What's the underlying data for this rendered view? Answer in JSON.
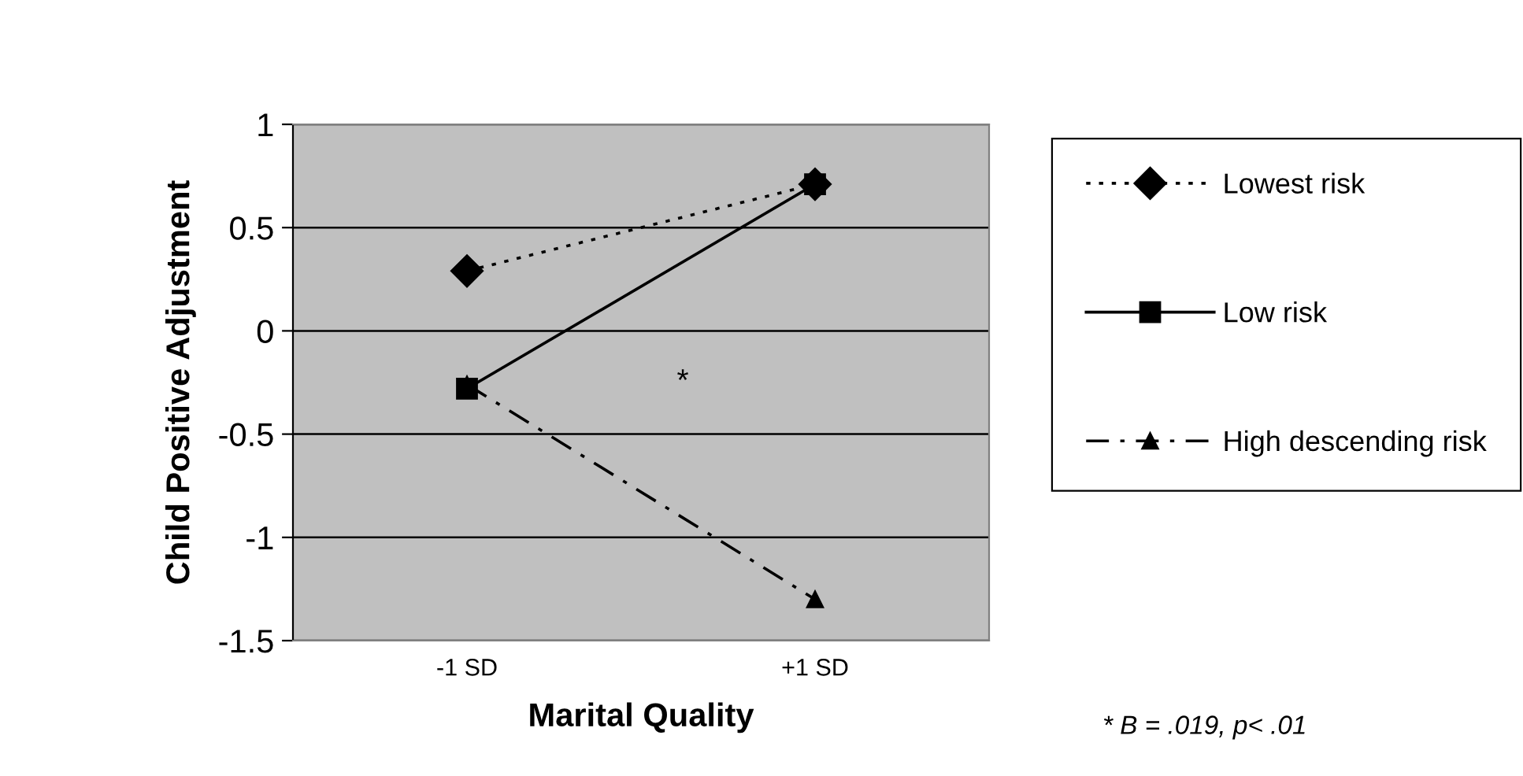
{
  "chart_data": {
    "type": "line",
    "xlabel": "Marital Quality",
    "ylabel": "Child Positive Adjustment",
    "categories": [
      "-1 SD",
      "+1 SD"
    ],
    "series": [
      {
        "name": "Lowest risk",
        "color": "#000000",
        "values": [
          0.29,
          0.71
        ],
        "marker": "diamond",
        "line_style": "dotted"
      },
      {
        "name": "Low risk",
        "color": "#000000",
        "values": [
          -0.28,
          0.71
        ],
        "marker": "square",
        "line_style": "solid"
      },
      {
        "name": "High descending risk",
        "color": "#000000",
        "values": [
          -0.26,
          -1.3
        ],
        "marker": "triangle",
        "line_style": "dashdot"
      }
    ],
    "ylim": [
      -1.5,
      1
    ],
    "yticks": [
      -1.5,
      -1,
      -0.5,
      0,
      0.5,
      1
    ],
    "grid": "y",
    "legend": "right",
    "annotations": [
      "*",
      "* B = .019, p< .01"
    ]
  }
}
